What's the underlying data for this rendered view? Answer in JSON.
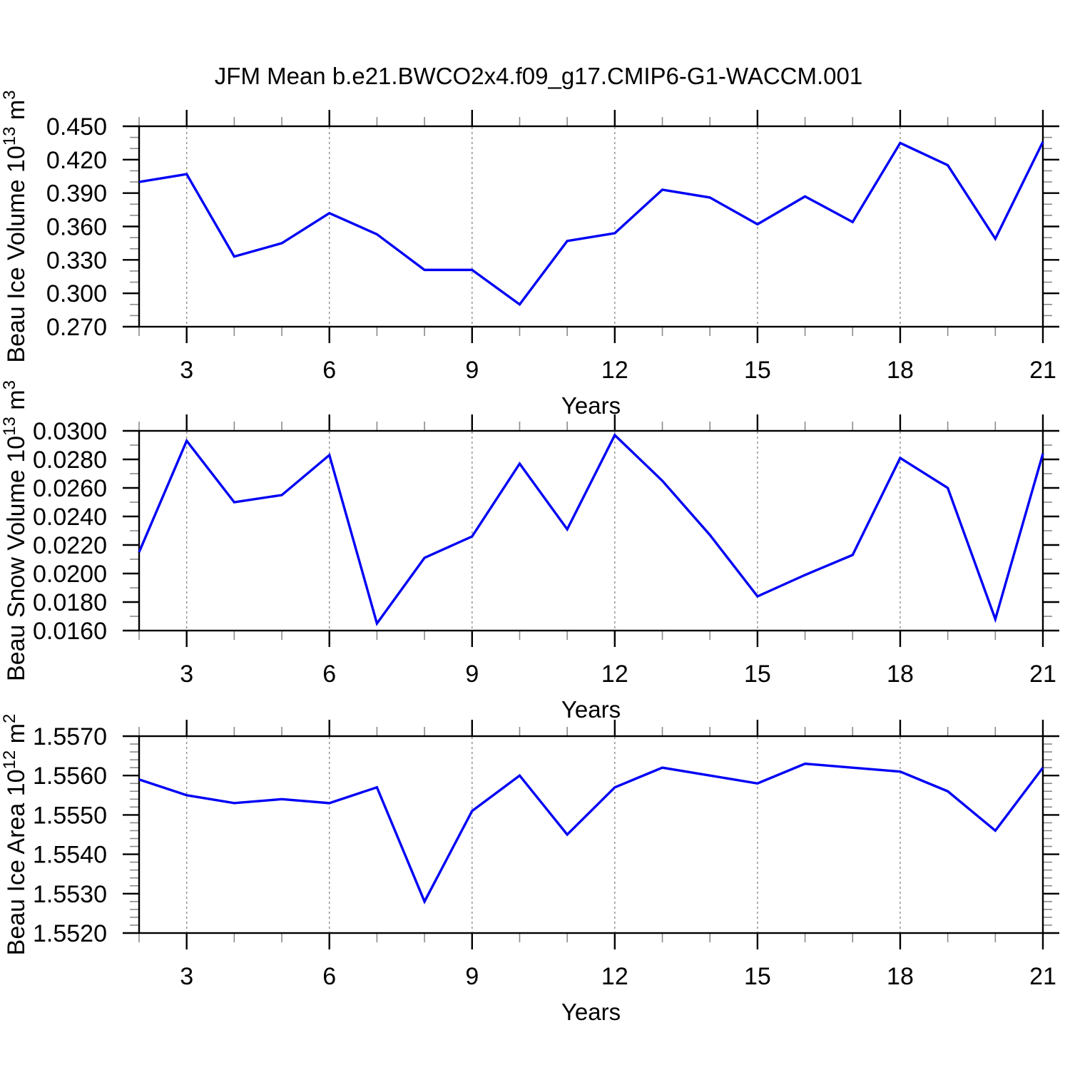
{
  "chart_data": {
    "type": "line",
    "title": "JFM Mean b.e21.BWCO2x4.f09_g17.CMIP6-G1-WACCM.001",
    "xlabel": "Years",
    "x": [
      2,
      3,
      4,
      5,
      6,
      7,
      8,
      9,
      10,
      11,
      12,
      13,
      14,
      15,
      16,
      17,
      18,
      19,
      20,
      21
    ],
    "xlim": [
      2,
      21
    ],
    "x_major_ticks": [
      3,
      6,
      9,
      12,
      15,
      18,
      21
    ],
    "x_minor_step": 1,
    "grid_x": [
      3,
      6,
      9,
      12,
      15,
      18
    ],
    "grid_style": "dashed",
    "legend": "none",
    "line_color": "#0000f5",
    "panels": [
      {
        "name": "ice-volume",
        "ylabel": "Beau Ice Volume 10¹³ m³",
        "ylabel_parts": [
          {
            "t": "Beau Ice Volume 10"
          },
          {
            "t": "13",
            "sup": true
          },
          {
            "t": " m"
          },
          {
            "t": "3",
            "sup": true
          }
        ],
        "ylim": [
          0.27,
          0.45
        ],
        "y_major_step": 0.03,
        "y_minor_step": 0.01,
        "y_decimals": 3,
        "y_tick_labels": [
          "0.270",
          "0.300",
          "0.330",
          "0.360",
          "0.390",
          "0.420",
          "0.450"
        ],
        "values": [
          0.4,
          0.407,
          0.333,
          0.345,
          0.372,
          0.353,
          0.321,
          0.321,
          0.29,
          0.347,
          0.354,
          0.393,
          0.386,
          0.362,
          0.387,
          0.364,
          0.435,
          0.415,
          0.349,
          0.436
        ]
      },
      {
        "name": "snow-volume",
        "ylabel": "Beau Snow Volume 10¹³ m³",
        "ylabel_parts": [
          {
            "t": "Beau Snow Volume 10"
          },
          {
            "t": "13",
            "sup": true
          },
          {
            "t": " m"
          },
          {
            "t": "3",
            "sup": true
          }
        ],
        "ylim": [
          0.016,
          0.03
        ],
        "y_major_step": 0.002,
        "y_minor_step": 0.001,
        "y_decimals": 4,
        "y_tick_labels": [
          "0.0160",
          "0.0180",
          "0.0200",
          "0.0220",
          "0.0240",
          "0.0260",
          "0.0280",
          "0.0300"
        ],
        "values": [
          0.0215,
          0.0293,
          0.025,
          0.0255,
          0.0283,
          0.0165,
          0.0211,
          0.0226,
          0.0277,
          0.0231,
          0.0297,
          0.0265,
          0.0227,
          0.0184,
          0.0199,
          0.0213,
          0.0281,
          0.026,
          0.0168,
          0.0284
        ]
      },
      {
        "name": "ice-area",
        "ylabel": "Beau Ice Area 10¹² m²",
        "ylabel_parts": [
          {
            "t": "Beau Ice Area 10"
          },
          {
            "t": "12",
            "sup": true
          },
          {
            "t": " m"
          },
          {
            "t": "2",
            "sup": true
          }
        ],
        "ylim": [
          1.552,
          1.557
        ],
        "y_major_step": 0.001,
        "y_minor_step": 0.0002,
        "y_decimals": 4,
        "y_tick_labels": [
          "1.5520",
          "1.5530",
          "1.5540",
          "1.5550",
          "1.5560",
          "1.5570"
        ],
        "values": [
          1.5559,
          1.5555,
          1.5553,
          1.5554,
          1.5553,
          1.5557,
          1.5528,
          1.5551,
          1.556,
          1.5545,
          1.5557,
          1.5562,
          1.556,
          1.5558,
          1.5563,
          1.5562,
          1.5561,
          1.5556,
          1.5546,
          1.5562
        ]
      }
    ]
  }
}
